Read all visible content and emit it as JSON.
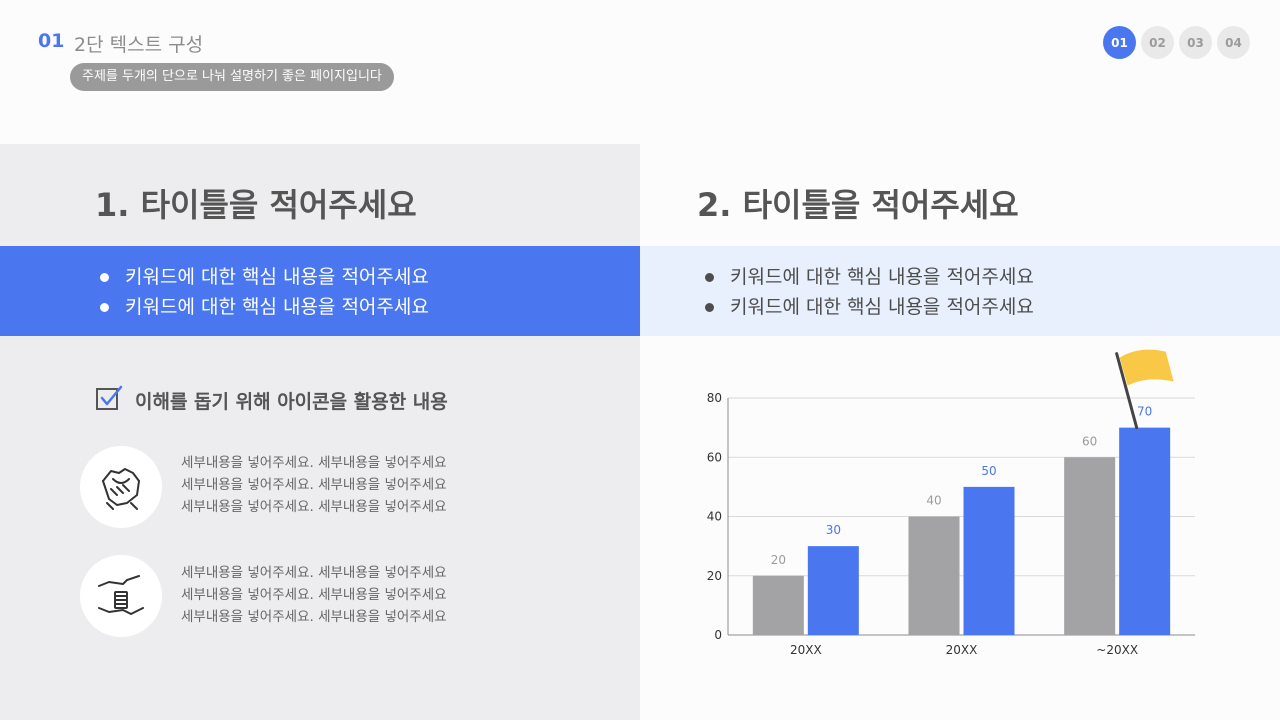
{
  "header": {
    "number": "01",
    "title": "2단 텍스트 구성",
    "subtitle": "주제를 두개의 단으로 나눠 설명하기 좋은 페이지입니다"
  },
  "pager": [
    {
      "label": "01",
      "active": true
    },
    {
      "label": "02",
      "active": false
    },
    {
      "label": "03",
      "active": false
    },
    {
      "label": "04",
      "active": false
    }
  ],
  "left": {
    "title": "1. 타이틀을 적어주세요",
    "bullets": [
      "키워드에 대한 핵심 내용을 적어주세요",
      "키워드에 대한 핵심 내용을 적어주세요"
    ],
    "check_label": "이해를 돕기 위해 아이콘을 활용한 내용",
    "items": [
      {
        "icon": "handshake-icon",
        "lines": [
          "세부내용을 넣어주세요. 세부내용을 넣어주세요",
          "세부내용을 넣어주세요. 세부내용을 넣어주세요",
          "세부내용을 넣어주세요. 세부내용을 넣어주세요"
        ]
      },
      {
        "icon": "coins-hands-icon",
        "lines": [
          "세부내용을 넣어주세요. 세부내용을 넣어주세요",
          "세부내용을 넣어주세요. 세부내용을 넣어주세요",
          "세부내용을 넣어주세요. 세부내용을 넣어주세요"
        ]
      }
    ]
  },
  "right": {
    "title": "2. 타이틀을 적어주세요",
    "bullets": [
      "키워드에 대한 핵심 내용을 적어주세요",
      "키워드에 대한 핵심 내용을 적어주세요"
    ]
  },
  "colors": {
    "accent": "#4a77f0",
    "gray_bar": "#a3a2a4",
    "flag": "#f9c846"
  },
  "chart_data": {
    "type": "bar",
    "categories": [
      "20XX",
      "20XX",
      "~20XX"
    ],
    "series": [
      {
        "values": [
          20,
          40,
          60
        ],
        "color": "#a3a2a4"
      },
      {
        "values": [
          30,
          50,
          70
        ],
        "color": "#4a77f0"
      }
    ],
    "ylim": [
      0,
      80
    ],
    "yticks": [
      0,
      20,
      40,
      60,
      80
    ],
    "grid": true,
    "annotation": "flag-icon"
  }
}
